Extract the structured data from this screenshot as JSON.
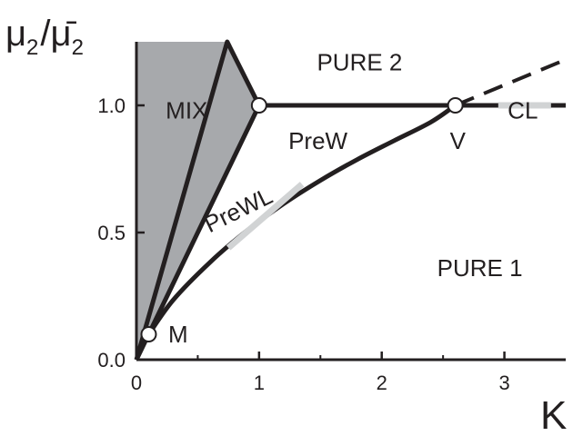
{
  "chart_data": {
    "type": "line",
    "title": "",
    "xlabel": "K",
    "ylabel": {
      "main": "μ",
      "sub": "2",
      "sep": "/",
      "denom": "μ̄",
      "denom_sub": "2"
    },
    "xlim": [
      0,
      3.5
    ],
    "ylim": [
      0,
      1.25
    ],
    "x_ticks": [
      0,
      1,
      2,
      3
    ],
    "x_tick_labels": [
      "0",
      "1",
      "2",
      "3"
    ],
    "y_ticks": [
      0,
      0.5,
      1.0
    ],
    "y_tick_labels": [
      "0.0",
      "0.5",
      "1.0"
    ],
    "grid": false,
    "colors": {
      "line": "#231f20",
      "mix_fill": "#a7a9ac",
      "highlight": "#d1d3d4",
      "point_fill": "#ffffff"
    },
    "mix_region": {
      "label": "MIX",
      "boundary": [
        [
          0.0,
          0.0
        ],
        [
          0.0,
          1.25
        ],
        [
          0.74,
          1.25
        ],
        [
          1.0,
          1.0
        ],
        [
          0.1,
          0.1
        ]
      ]
    },
    "series": [
      {
        "style": "solid",
        "x": [
          0.0,
          0.74,
          1.0
        ],
        "y": [
          0.0,
          1.25,
          1.0
        ]
      },
      {
        "style": "solid",
        "x": [
          0.0,
          0.1,
          1.0
        ],
        "y": [
          0.0,
          0.1,
          1.0
        ]
      },
      {
        "style": "solid",
        "x": [
          1.0,
          2.6,
          3.5
        ],
        "y": [
          1.0,
          1.0,
          1.0
        ]
      },
      {
        "style": "dashed",
        "x": [
          2.6,
          3.5
        ],
        "y": [
          1.0,
          1.18
        ]
      },
      {
        "style": "solid",
        "x": [
          0.1,
          0.3,
          0.6,
          0.9,
          1.2,
          1.5,
          1.8,
          2.1,
          2.4,
          2.6
        ],
        "y": [
          0.1,
          0.235,
          0.383,
          0.507,
          0.613,
          0.705,
          0.787,
          0.861,
          0.934,
          1.0
        ]
      }
    ],
    "highlights": [
      {
        "x": [
          0.75,
          1.35
        ],
        "y": [
          0.44,
          0.69
        ]
      },
      {
        "x": [
          2.95,
          3.38
        ],
        "y": [
          1.0,
          1.0
        ]
      }
    ],
    "points": [
      {
        "label": "M",
        "x": 0.1,
        "y": 0.1
      },
      {
        "label": "",
        "x": 1.0,
        "y": 1.0
      },
      {
        "label": "V",
        "x": 2.6,
        "y": 1.0
      }
    ],
    "annotations": [
      {
        "text": "PURE 2",
        "x": 1.82,
        "y": 1.17
      },
      {
        "text": "MIX",
        "x": 0.41,
        "y": 0.98
      },
      {
        "text": "PreW",
        "x": 1.48,
        "y": 0.86
      },
      {
        "text": "V",
        "x": 2.62,
        "y": 0.86
      },
      {
        "text": "CL",
        "x": 3.15,
        "y": 0.98
      },
      {
        "text": "PURE 1",
        "x": 2.8,
        "y": 0.36
      },
      {
        "text": "M",
        "x": 0.34,
        "y": 0.1
      }
    ],
    "rotated_annotation": {
      "text": "PreWL",
      "x": 0.86,
      "y": 0.56,
      "angle_deg": -26
    }
  }
}
